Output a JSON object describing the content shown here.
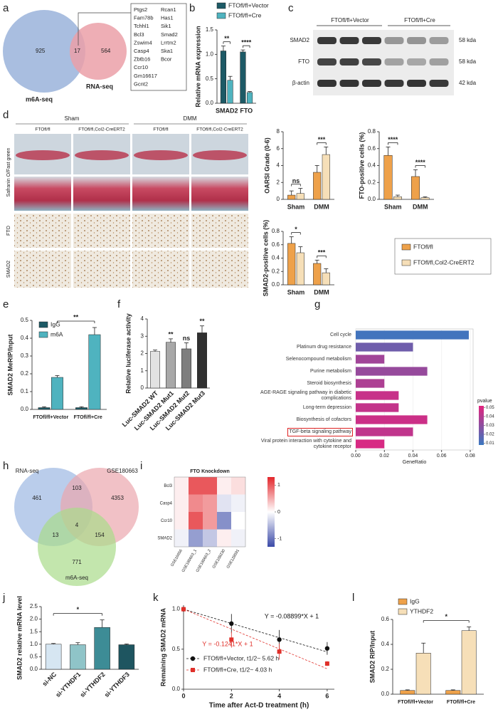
{
  "panel_labels": [
    "a",
    "b",
    "c",
    "d",
    "e",
    "f",
    "g",
    "h",
    "i",
    "j",
    "k",
    "l"
  ],
  "venn_a": {
    "sets": [
      "m6A-seq",
      "RNA-seq"
    ],
    "counts": [
      925,
      17,
      564
    ],
    "genes": [
      "Ptgs2",
      "Fam78b",
      "Tchhl1",
      "Bcl3",
      "Zswim4",
      "Casp4",
      "Zbtb16",
      "Ccr10",
      "Gm16617",
      "Gcnt2",
      "Rcan1",
      "Has1",
      "Sik1",
      "Smad2",
      "Lrrtm2",
      "Ska1",
      "Bcor"
    ]
  },
  "blot_c": {
    "groups": [
      "FTOfl/fl+Vector",
      "FTOfl/fl+Cre"
    ],
    "rows": [
      "SMAD2",
      "FTO",
      "β-actin"
    ],
    "sizes": [
      "58 kda",
      "58 kda",
      "42 kda"
    ]
  },
  "histology_d": {
    "groups": [
      "Sham",
      "DMM"
    ],
    "genotypes": [
      "FTOfl/fl",
      "FTOfl/fl,Col2-CreERT2"
    ],
    "rows": [
      "Safranin O/Fast green",
      "FTO",
      "SMAD2"
    ]
  },
  "venn_h": {
    "sets": [
      "RNA-seq",
      "GSE180663",
      "m6A-seq"
    ],
    "counts": [
      461,
      103,
      4353,
      13,
      4,
      154,
      771
    ]
  },
  "chart_data": [
    {
      "type": "bar",
      "ylabel": "Relative mRNA expression",
      "categories": [
        "SMAD2",
        "FTO"
      ],
      "series": [
        {
          "name": "FTOfl/fl+Vector",
          "color": "#1d5a66",
          "values": [
            1.07,
            1.05
          ],
          "errors": [
            0.1,
            0.04
          ]
        },
        {
          "name": "FTOfl/fl+Cre",
          "color": "#4fb3bf",
          "values": [
            0.47,
            0.22
          ],
          "errors": [
            0.08,
            0.02
          ]
        }
      ],
      "significance": [
        "**",
        "****"
      ],
      "ylim": [
        0,
        1.5
      ],
      "yticks": [
        {
          "value": 0,
          "label": "0.0"
        },
        0.5,
        {
          "value": 1,
          "label": "1.0"
        },
        1.5
      ]
    },
    {
      "type": "bar",
      "ylabel": "OARSI Grade (0-6)",
      "categories": [
        "Sham",
        "DMM"
      ],
      "series": [
        {
          "name": "FTOfl/fl",
          "color": "#eea14a",
          "values": [
            0.5,
            3.2
          ],
          "errors": [
            0.5,
            0.8
          ]
        },
        {
          "name": "FTOfl/fl,Col2-CreERT2",
          "color": "#f6dfb8",
          "values": [
            0.7,
            5.3
          ],
          "errors": [
            0.6,
            0.9
          ]
        }
      ],
      "significance": [
        "ns",
        "***"
      ],
      "ylim": [
        0,
        8
      ],
      "yticks": [
        0,
        2,
        4,
        6,
        8
      ]
    },
    {
      "type": "bar",
      "ylabel": "FTO-positive cells (%)",
      "categories": [
        "Sham",
        "DMM"
      ],
      "series": [
        {
          "color": "#eea14a",
          "values": [
            0.52,
            0.27
          ],
          "errors": [
            0.1,
            0.08
          ]
        },
        {
          "color": "#f6dfb8",
          "values": [
            0.03,
            0.02
          ],
          "errors": [
            0.02,
            0.01
          ]
        }
      ],
      "significance": [
        "****",
        "****"
      ],
      "ylim": [
        0,
        0.8
      ],
      "yticks": [
        {
          "value": 0,
          "label": "0.0"
        },
        0.2,
        0.4,
        0.6,
        0.8
      ]
    },
    {
      "type": "bar",
      "ylabel": "SMAD2-positive cells (%)",
      "categories": [
        "Sham",
        "DMM"
      ],
      "series": [
        {
          "color": "#eea14a",
          "values": [
            0.62,
            0.32
          ],
          "errors": [
            0.1,
            0.05
          ]
        },
        {
          "color": "#f6dfb8",
          "values": [
            0.48,
            0.18
          ],
          "errors": [
            0.09,
            0.06
          ]
        }
      ],
      "significance": [
        "*",
        "***"
      ],
      "ylim": [
        0,
        0.8
      ],
      "yticks": [
        {
          "value": 0,
          "label": "0.0"
        },
        0.2,
        0.4,
        0.6,
        0.8
      ]
    },
    {
      "type": "bar",
      "ylabel": "SMAD2 MeRIP/Input",
      "categories": [
        "FTOfl/fl+Vector",
        "FTOfl/fl+Cre"
      ],
      "series": [
        {
          "name": "IgG",
          "color": "#1d5a66",
          "values": [
            0.01,
            0.01
          ],
          "errors": [
            0.005,
            0.005
          ]
        },
        {
          "name": "m6A",
          "color": "#4fb3bf",
          "values": [
            0.18,
            0.42
          ],
          "errors": [
            0.01,
            0.04
          ]
        }
      ],
      "comparison": "**",
      "ylim": [
        0,
        0.5
      ],
      "yticks": [
        {
          "value": 0,
          "label": "0.0"
        },
        0.1,
        0.2,
        0.3,
        0.4,
        0.5
      ]
    },
    {
      "type": "bar",
      "ylabel": "Relative luciferase activity",
      "categories": [
        "Luc-SMAD2 WT",
        "Luc-SMAD2 Mut1",
        "Luc-SMAD2 Mut2",
        "Luc-SMAD2 Mut3"
      ],
      "values": [
        2.12,
        2.65,
        2.27,
        3.2
      ],
      "errors": [
        0.08,
        0.2,
        0.35,
        0.4
      ],
      "colors": [
        "#e2e2e2",
        "#a8a8a8",
        "#7e7e7e",
        "#303030"
      ],
      "significance": [
        null,
        "**",
        "ns",
        "**"
      ],
      "ylim": [
        0,
        4
      ],
      "yticks": [
        0,
        1,
        2,
        3,
        4
      ]
    },
    {
      "type": "hbar",
      "categories": [
        "Cell cycle",
        "Platinum drug resistance",
        "Selenocompound metabolism",
        "Purine metabolism",
        "Steroid biosynthesis",
        "AGE-RAGE signaling pathway in diabetic complications",
        "Long-term depression",
        "Biosynthesis of cofactors",
        "TGF-beta signaling pathway",
        "Viral protein interaction with cytokine and cytokine receptor"
      ],
      "values": [
        0.079,
        0.04,
        0.02,
        0.05,
        0.02,
        0.03,
        0.03,
        0.05,
        0.04,
        0.02
      ],
      "pvalue": [
        0.01,
        0.022,
        0.035,
        0.032,
        0.038,
        0.045,
        0.044,
        0.046,
        0.043,
        0.049
      ],
      "xlabel": "GeneRatio",
      "xlim": [
        0,
        0.082
      ],
      "xticks": [
        {
          "value": 0,
          "label": "0.00"
        },
        0.02,
        0.04,
        0.06,
        0.08
      ],
      "color_label": "pvalue",
      "color_lim": [
        0.008,
        0.052
      ],
      "color_ticks": [
        0.05,
        0.04,
        0.03,
        0.02,
        0.01
      ],
      "color_scale": [
        "#3a78c0",
        "#e2247e"
      ],
      "highlight_index": 8
    },
    {
      "type": "heatmap",
      "title": "FTO Knockdown",
      "rows": [
        "Bcl3",
        "Casp4",
        "Ccr10",
        "SMAD2"
      ],
      "columns": [
        "GSE16656",
        "GSE180663_1",
        "GSE180663_2",
        "GSE108230",
        "GSE128591"
      ],
      "values": [
        [
          0.1,
          1.0,
          1.0,
          0.1,
          0.2
        ],
        [
          0.1,
          0.7,
          0.6,
          -0.2,
          -0.1
        ],
        [
          0.1,
          1.0,
          0.6,
          -0.8,
          0.0
        ],
        [
          -0.1,
          -0.7,
          -0.4,
          0.1,
          -0.1
        ]
      ],
      "zlim": [
        -1.3,
        1.3
      ],
      "zticks": [
        1,
        0,
        -1
      ],
      "color_scale": [
        "#3b4aa8",
        "#ffffff",
        "#e3262b"
      ]
    },
    {
      "type": "bar",
      "ylabel": "SMAD2 relative mRNA level",
      "categories": [
        "si-NC",
        "si-YTHDF1",
        "si-YTHDF2",
        "si-YTHDF3"
      ],
      "values": [
        1.0,
        0.98,
        1.67,
        0.98
      ],
      "errors": [
        0.03,
        0.08,
        0.3,
        0.03
      ],
      "colors": [
        "#d6e6f2",
        "#8fc4c8",
        "#3d8c96",
        "#1e5560"
      ],
      "comparison": "*",
      "ylim": [
        0,
        2.5
      ],
      "yticks": [
        {
          "value": 0,
          "label": "0.0"
        },
        0.5,
        {
          "value": 1,
          "label": "1.0"
        },
        1.5,
        {
          "value": 2,
          "label": "2.0"
        },
        2.5
      ]
    },
    {
      "type": "line",
      "xlabel": "Time after Act-D treatment (h)",
      "ylabel": "Remaining SMAD2 mRNA",
      "x": [
        0,
        2,
        4,
        6
      ],
      "xlim": [
        0,
        6.3
      ],
      "xticks": [
        0,
        2,
        4,
        6
      ],
      "ylim": [
        0,
        1.05
      ],
      "yticks": [
        {
          "value": 0,
          "label": "0.0"
        },
        0.5,
        {
          "value": 1,
          "label": "1.0"
        }
      ],
      "series": [
        {
          "name": "FTOfl/fl+Vector, t1/2~ 5.62 h",
          "color": "#111111",
          "marker": "circle",
          "values": [
            1,
            0.82,
            0.62,
            0.51
          ],
          "errors": [
            0,
            0.12,
            0.12,
            0.08
          ],
          "fit": {
            "slope": -0.08899,
            "intercept": 1,
            "label": "Y = -0.08899*X + 1"
          }
        },
        {
          "name": "FTOfl/fl+Cre, t1/2~ 4.03 h",
          "color": "#e0302a",
          "marker": "square",
          "values": [
            1,
            0.62,
            0.47,
            0.32
          ],
          "errors": [
            0,
            0.1,
            0.1,
            0.03
          ],
          "fit": {
            "slope": -0.1241,
            "intercept": 1,
            "label": "Y = -0.1241*X + 1"
          }
        }
      ]
    },
    {
      "type": "bar",
      "ylabel": "SMAD2 RIP/Input",
      "categories": [
        "FTOfl/fl+Vector",
        "FTOfl/fl+Cre"
      ],
      "series": [
        {
          "name": "IgG",
          "color": "#eea14a",
          "values": [
            0.03,
            0.03
          ],
          "errors": [
            0.005,
            0.005
          ]
        },
        {
          "name": "YTHDF2",
          "color": "#f6dfb8",
          "values": [
            0.33,
            0.51
          ],
          "errors": [
            0.08,
            0.03
          ]
        }
      ],
      "comparison": "*",
      "ylim": [
        0,
        0.6
      ],
      "yticks": [
        {
          "value": 0,
          "label": "0.0"
        },
        0.2,
        0.4,
        0.6
      ]
    }
  ]
}
